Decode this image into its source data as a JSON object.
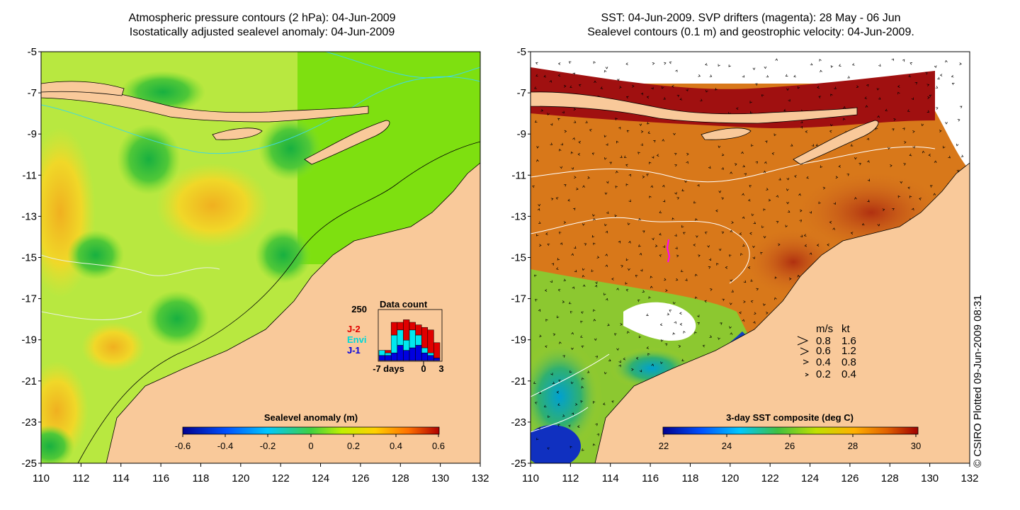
{
  "left_panel": {
    "title_line1": "Atmospheric pressure contours (2 hPa): 04-Jun-2009",
    "title_line2": "Isostatically adjusted sealevel anomaly: 04-Jun-2009",
    "colorbar": {
      "label": "Sealevel anomaly (m)",
      "ticks": [
        "-0.6",
        "-0.4",
        "-0.2",
        "0",
        "0.2",
        "0.4",
        "0.6"
      ]
    },
    "inset": {
      "title": "Data count",
      "ymax_label": "250",
      "legend": [
        {
          "name": "J-2",
          "color": "#e00000"
        },
        {
          "name": "Envi",
          "color": "#00e0e0"
        },
        {
          "name": "J-1",
          "color": "#0000e0"
        }
      ],
      "x_ticks": [
        "-7",
        "days",
        "0",
        "3"
      ],
      "bars": [
        {
          "blue": 0.1,
          "cyan": 0.1,
          "red": 0.0
        },
        {
          "blue": 0.1,
          "cyan": 0.05,
          "red": 0.05
        },
        {
          "blue": 0.15,
          "cyan": 0.35,
          "red": 0.25
        },
        {
          "blue": 0.3,
          "cyan": 0.3,
          "red": 0.15
        },
        {
          "blue": 0.2,
          "cyan": 0.2,
          "red": 0.4
        },
        {
          "blue": 0.25,
          "cyan": 0.35,
          "red": 0.15
        },
        {
          "blue": 0.3,
          "cyan": 0.2,
          "red": 0.2
        },
        {
          "blue": 0.15,
          "cyan": 0.1,
          "red": 0.4
        },
        {
          "blue": 0.1,
          "cyan": 0.05,
          "red": 0.45
        },
        {
          "blue": 0.05,
          "cyan": 0.0,
          "red": 0.3
        }
      ]
    }
  },
  "right_panel": {
    "title_line1": "SST: 04-Jun-2009. SVP drifters (magenta): 28 May - 06 Jun",
    "title_line2": "Sealevel contours (0.1 m) and geostrophic velocity: 04-Jun-2009.",
    "colorbar": {
      "label": "3-day SST composite (deg C)",
      "ticks": [
        "22",
        "24",
        "26",
        "28",
        "30"
      ]
    },
    "speed_legend": {
      "header_ms": "m/s",
      "header_kt": "kt",
      "rows": [
        {
          "ms": "0.8",
          "kt": "1.6"
        },
        {
          "ms": "0.6",
          "kt": "1.2"
        },
        {
          "ms": "0.4",
          "kt": "0.8"
        },
        {
          "ms": "0.2",
          "kt": "0.4"
        }
      ]
    }
  },
  "axes": {
    "y_ticks": [
      "-5",
      "-7",
      "-9",
      "-11",
      "-13",
      "-15",
      "-17",
      "-19",
      "-21",
      "-23",
      "-25"
    ],
    "x_ticks": [
      "110",
      "112",
      "114",
      "116",
      "118",
      "120",
      "122",
      "124",
      "126",
      "128",
      "130",
      "132"
    ]
  },
  "credit": "© CSIRO Plotted 09-Jun-2009 08:31",
  "colors": {
    "land": "#f9c99a",
    "sla_base": "#b8e840",
    "sst_base": "#d8781a",
    "sst_warm": "#a01010"
  }
}
